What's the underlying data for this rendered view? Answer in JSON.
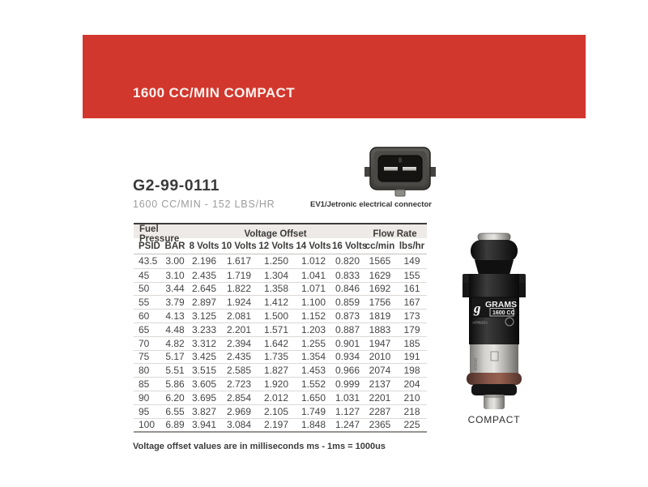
{
  "banner": {
    "title": "1600 CC/MIN COMPACT",
    "bg_color": "#d2372e"
  },
  "product": {
    "part_number": "G2-99-0111",
    "subtitle": "1600 CC/MIN - 152 LBS/HR",
    "connector_label": "EV1/Jetronic electrical connector"
  },
  "table": {
    "group_headers": [
      {
        "label": "Fuel Pressure"
      },
      {
        "label": "Voltage Offset"
      },
      {
        "label": "Flow Rate"
      }
    ],
    "columns": [
      "PSID",
      "BAR",
      "8 Volts",
      "10 Volts",
      "12 Volts",
      "14 Volts",
      "16 Volts",
      "cc/min",
      "lbs/hr"
    ],
    "rows": [
      [
        "43.5",
        "3.00",
        "2.196",
        "1.617",
        "1.250",
        "1.012",
        "0.820",
        "1565",
        "149"
      ],
      [
        "45",
        "3.10",
        "2.435",
        "1.719",
        "1.304",
        "1.041",
        "0.833",
        "1629",
        "155"
      ],
      [
        "50",
        "3.44",
        "2.645",
        "1.822",
        "1.358",
        "1.071",
        "0.846",
        "1692",
        "161"
      ],
      [
        "55",
        "3.79",
        "2.897",
        "1.924",
        "1.412",
        "1.100",
        "0.859",
        "1756",
        "167"
      ],
      [
        "60",
        "4.13",
        "3.125",
        "2.081",
        "1.500",
        "1.152",
        "0.873",
        "1819",
        "173"
      ],
      [
        "65",
        "4.48",
        "3.233",
        "2.201",
        "1.571",
        "1.203",
        "0.887",
        "1883",
        "179"
      ],
      [
        "70",
        "4.82",
        "3.312",
        "2.394",
        "1.642",
        "1.255",
        "0.901",
        "1947",
        "185"
      ],
      [
        "75",
        "5.17",
        "3.425",
        "2.435",
        "1.735",
        "1.354",
        "0.934",
        "2010",
        "191"
      ],
      [
        "80",
        "5.51",
        "3.515",
        "2.585",
        "1.827",
        "1.453",
        "0.966",
        "2074",
        "198"
      ],
      [
        "85",
        "5.86",
        "3.605",
        "2.723",
        "1.920",
        "1.552",
        "0.999",
        "2137",
        "204"
      ],
      [
        "90",
        "6.20",
        "3.695",
        "2.854",
        "2.012",
        "1.650",
        "1.031",
        "2201",
        "210"
      ],
      [
        "95",
        "6.55",
        "3.827",
        "2.969",
        "2.105",
        "1.749",
        "1.127",
        "2287",
        "218"
      ],
      [
        "100",
        "6.89",
        "3.941",
        "3.084",
        "2.197",
        "1.848",
        "1.247",
        "2365",
        "225"
      ]
    ]
  },
  "note": "Voltage offset values are in milliseconds ms - 1ms = 1000us",
  "injector": {
    "brand": "GRAMS",
    "logo_glyph": "g",
    "size_label": "1600 CC",
    "material_marking": ">PA66<",
    "serial_marking": "63545",
    "caption": "COMPACT"
  }
}
